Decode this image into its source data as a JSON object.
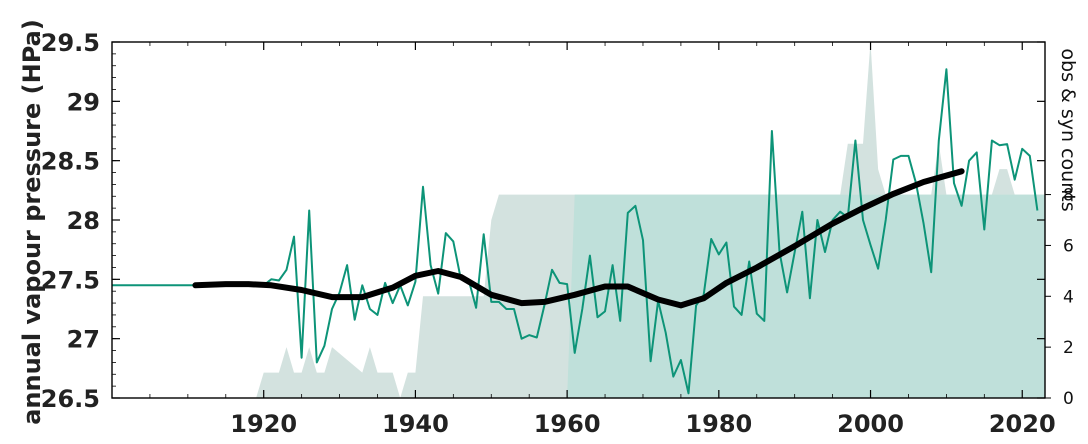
{
  "chart_data": {
    "type": "line",
    "ylabel": "annual vapour pressure (HPa)",
    "y2label": "obs & syn counts",
    "xlim": [
      1900,
      2023
    ],
    "ylim": [
      26.5,
      29.5
    ],
    "y2lim": [
      0,
      14
    ],
    "x_ticks": [
      1920,
      1940,
      1960,
      1980,
      2000,
      2020
    ],
    "y_ticks": [
      26.5,
      27,
      27.5,
      28,
      28.5,
      29,
      29.5
    ],
    "y_tick_labels": [
      "26.5",
      "27",
      "27.5",
      "28",
      "28.5",
      "29",
      "29.5"
    ],
    "y2_ticks": [
      0,
      2,
      4,
      6,
      8
    ],
    "colors": {
      "annual": "#0d9478",
      "smooth": "#000000",
      "counts_light": "#d3e2df",
      "counts_dark": "#bfe0da"
    },
    "series": [
      {
        "kind": "annual",
        "x": [
          1900,
          1911,
          1920,
          1921,
          1922,
          1923,
          1924,
          1925,
          1926,
          1927,
          1928,
          1929,
          1930,
          1931,
          1932,
          1933,
          1934,
          1935,
          1936,
          1937,
          1938,
          1939,
          1940,
          1941,
          1942,
          1943,
          1944,
          1945,
          1946,
          1947,
          1948,
          1949,
          1950,
          1951,
          1952,
          1953,
          1954,
          1955,
          1956,
          1957,
          1958,
          1959,
          1960,
          1961,
          1962,
          1963,
          1964,
          1965,
          1966,
          1967,
          1968,
          1969,
          1970,
          1971,
          1972,
          1973,
          1974,
          1975,
          1976,
          1977,
          1978,
          1979,
          1980,
          1981,
          1982,
          1983,
          1984,
          1985,
          1986,
          1987,
          1988,
          1989,
          1990,
          1991,
          1992,
          1993,
          1994,
          1995,
          1996,
          1997,
          1998,
          1999,
          2000,
          2001,
          2002,
          2003,
          2004,
          2005,
          2006,
          2007,
          2008,
          2009,
          2010,
          2011,
          2012,
          2013,
          2014,
          2015,
          2016,
          2017,
          2018,
          2019,
          2020,
          2021,
          2022
        ],
        "y": [
          27.45,
          27.45,
          27.45,
          27.5,
          27.49,
          27.58,
          27.86,
          26.84,
          28.08,
          26.8,
          26.94,
          27.25,
          27.39,
          27.62,
          27.16,
          27.45,
          27.25,
          27.2,
          27.47,
          27.3,
          27.45,
          27.28,
          27.48,
          28.28,
          27.62,
          27.38,
          27.89,
          27.82,
          27.5,
          27.5,
          27.26,
          27.88,
          27.31,
          27.31,
          27.25,
          27.25,
          27.0,
          27.03,
          27.01,
          27.28,
          27.58,
          27.47,
          27.46,
          26.88,
          27.25,
          27.7,
          27.18,
          27.23,
          27.62,
          27.15,
          28.06,
          28.12,
          27.83,
          26.81,
          27.32,
          27.05,
          26.68,
          26.82,
          26.54,
          27.28,
          27.37,
          27.84,
          27.71,
          27.81,
          27.27,
          27.2,
          27.65,
          27.21,
          27.15,
          28.75,
          27.73,
          27.39,
          27.73,
          28.07,
          27.34,
          28.0,
          27.73,
          28.0,
          28.07,
          28.02,
          28.67,
          28.0,
          27.79,
          27.59,
          28.0,
          28.51,
          28.54,
          28.54,
          28.31,
          27.97,
          27.56,
          28.67,
          29.27,
          28.31,
          28.12,
          28.5,
          28.57,
          27.92,
          28.67,
          28.63,
          28.64,
          28.34,
          28.6,
          28.54,
          28.08
        ]
      },
      {
        "kind": "smooth",
        "x": [
          1911,
          1915,
          1918,
          1921,
          1925,
          1929,
          1933,
          1937,
          1940,
          1943,
          1946,
          1950,
          1954,
          1957,
          1961,
          1965,
          1968,
          1972,
          1975,
          1978,
          1981,
          1985,
          1990,
          1995,
          1999,
          2003,
          2007,
          2012
        ],
        "y": [
          27.45,
          27.46,
          27.46,
          27.45,
          27.41,
          27.35,
          27.35,
          27.43,
          27.53,
          27.57,
          27.52,
          27.37,
          27.3,
          27.31,
          27.37,
          27.44,
          27.44,
          27.33,
          27.28,
          27.34,
          27.47,
          27.6,
          27.78,
          27.97,
          28.1,
          28.22,
          28.32,
          28.41
        ]
      }
    ],
    "counts": [
      {
        "kind": "total",
        "x": [
          1919,
          1920,
          1922,
          1923,
          1924,
          1925,
          1926,
          1927,
          1928,
          1929,
          1933,
          1934,
          1935,
          1936,
          1937,
          1938,
          1939,
          1940,
          1941,
          1942,
          1945,
          1946,
          1949,
          1950,
          1951,
          1960,
          1961,
          1996,
          1997,
          1998,
          1999,
          2000,
          2001,
          2002,
          2007,
          2008,
          2009,
          2010,
          2016,
          2017,
          2018,
          2019,
          2023
        ],
        "y": [
          0,
          1,
          1,
          2,
          1,
          1,
          2,
          1,
          1,
          2,
          1,
          2,
          1,
          1,
          1,
          0,
          1,
          1,
          4,
          4,
          4,
          4,
          4,
          7,
          8,
          8,
          8,
          8,
          10,
          10,
          10,
          14,
          9,
          8,
          8,
          8,
          10,
          8,
          8,
          9,
          9,
          8,
          8
        ]
      },
      {
        "kind": "synop",
        "x": [
          1960,
          1961,
          2023
        ],
        "y": [
          0,
          8,
          8
        ]
      }
    ]
  }
}
